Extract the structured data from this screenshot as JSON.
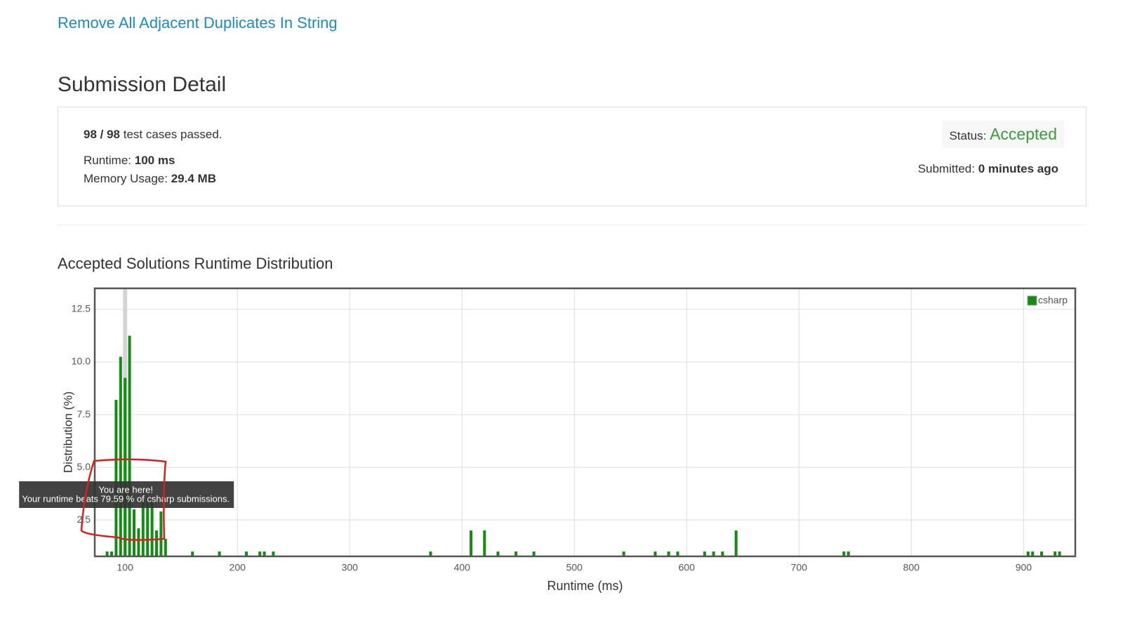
{
  "problem_link": "Remove All Adjacent Duplicates In String",
  "heading": "Submission Detail",
  "summary": {
    "test_cases": "98 / 98",
    "test_cases_text": "test cases passed.",
    "runtime_label": "Runtime:",
    "runtime": "100 ms",
    "memory_label": "Memory Usage:",
    "memory": "29.4 MB",
    "status_label": "Status:",
    "status": "Accepted",
    "submitted_label": "Submitted:",
    "submitted": "0 minutes ago"
  },
  "chart_data": {
    "type": "bar",
    "title": "Accepted Solutions Runtime Distribution",
    "xlabel": "Runtime (ms)",
    "ylabel": "Distribution (%)",
    "x": [
      84,
      88,
      92,
      96,
      100,
      104,
      108,
      112,
      116,
      120,
      124,
      128,
      132,
      136,
      160,
      184,
      208,
      220,
      224,
      232,
      372,
      408,
      420,
      432,
      448,
      464,
      544,
      572,
      584,
      592,
      616,
      624,
      632,
      644,
      740,
      744,
      904,
      908,
      916,
      928,
      932
    ],
    "series": [
      {
        "name": "csharp",
        "color": "#148c14",
        "values": [
          1.0,
          1.0,
          8.2,
          10.25,
          9.25,
          11.25,
          3.0,
          2.1,
          3.4,
          3.6,
          3.4,
          2.0,
          2.9,
          1.6,
          1.0,
          1.0,
          1.0,
          1.0,
          1.0,
          1.0,
          1.0,
          2.0,
          2.0,
          1.0,
          1.0,
          1.0,
          1.0,
          1.0,
          1.0,
          1.0,
          1.0,
          1.0,
          1.0,
          2.0,
          1.0,
          1.0,
          1.0,
          1.0,
          1.0,
          1.0,
          1.0
        ]
      }
    ],
    "xlim": [
      73,
      946
    ],
    "xticks": [
      100,
      200,
      300,
      400,
      500,
      600,
      700,
      800,
      900
    ],
    "ylim": [
      0.77,
      13.5
    ],
    "yticks": [
      2.5,
      {
        "value": 5,
        "label": "5.0"
      },
      7.5,
      {
        "value": 10,
        "label": "10.0"
      },
      12.5
    ],
    "grid": true,
    "legend": "top-right",
    "annotation": {
      "x": 100,
      "title": "You are here!",
      "text": "Your runtime beats 79.59 % of csharp submissions."
    }
  }
}
